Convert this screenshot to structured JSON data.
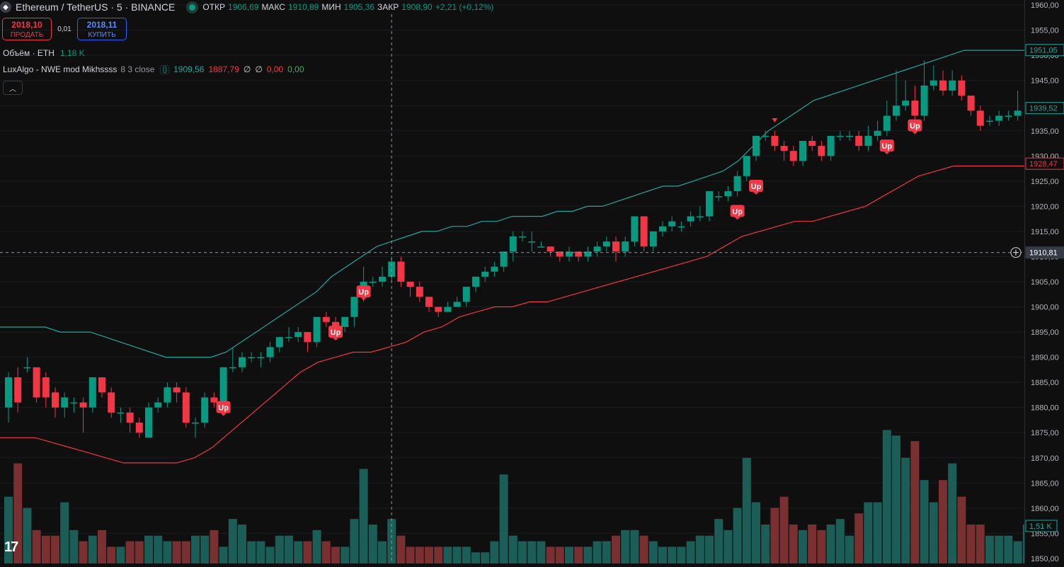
{
  "header": {
    "symbol": "Ethereum / TetherUS · 5 · BINANCE",
    "open_label": "ОТКР",
    "open_value": "1906,69",
    "high_label": "МАКС",
    "high_value": "1910,89",
    "low_label": "МИН",
    "low_value": "1905,36",
    "close_label": "ЗАКР",
    "close_value": "1908,90",
    "change": "+2,21 (+0,12%)"
  },
  "trade": {
    "sell_price": "2018,10",
    "sell_label": "ПРОДАТЬ",
    "spread": "0,01",
    "buy_price": "2018,11",
    "buy_label": "КУПИТЬ"
  },
  "volume_legend": {
    "label": "Объём · ETH",
    "value": "1,18 K"
  },
  "indicator_legend": {
    "name": "LuxAlgo - NWE mod Mikhssss",
    "params": "8 3 close",
    "upper": "1909,56",
    "lower": "1887,79",
    "v3": "∅",
    "v4": "∅",
    "v5": "0,00",
    "v6": "0,00"
  },
  "colors": {
    "up": "#089981",
    "down": "#f23645",
    "upper_band": "#26a69a",
    "lower_band": "#f23645"
  },
  "axis": {
    "ticks": [
      "1960,00",
      "1955,00",
      "1950,00",
      "1945,00",
      "1940,00",
      "1935,00",
      "1930,00",
      "1925,00",
      "1920,00",
      "1915,00",
      "1910,00",
      "1905,00",
      "1900,00",
      "1895,00",
      "1890,00",
      "1885,00",
      "1880,00",
      "1875,00",
      "1870,00",
      "1865,00",
      "1860,00",
      "1855,00",
      "1850,00"
    ],
    "upper_label": "1951,05",
    "close_label": "1939,52",
    "lower_label": "1928,47",
    "crosshair_label": "1910,81",
    "volume_label": "1,51 K"
  },
  "chart_data": {
    "type": "candlestick",
    "x_unit": "5-minute bars",
    "y_range": [
      1849,
      1961
    ],
    "crosshair_price": 1910.81,
    "candles": [
      [
        1880,
        1886,
        1877,
        1887
      ],
      [
        1886,
        1881,
        1879,
        1888
      ],
      [
        1888,
        1888,
        1887,
        1890
      ],
      [
        1888,
        1882,
        1881,
        1888
      ],
      [
        1886,
        1882,
        1880,
        1887
      ],
      [
        1883,
        1880,
        1878,
        1884
      ],
      [
        1880,
        1882,
        1878,
        1883
      ],
      [
        1881,
        1881,
        1879,
        1882
      ],
      [
        1881,
        1880,
        1875,
        1882
      ],
      [
        1880,
        1886,
        1879,
        1886
      ],
      [
        1886,
        1883,
        1882,
        1886
      ],
      [
        1883,
        1879,
        1878,
        1884
      ],
      [
        1879,
        1879,
        1877,
        1880
      ],
      [
        1879,
        1877,
        1875,
        1880
      ],
      [
        1877,
        1875,
        1874,
        1878
      ],
      [
        1874,
        1880,
        1874,
        1881
      ],
      [
        1880,
        1881,
        1879,
        1882
      ],
      [
        1881,
        1884,
        1880,
        1885
      ],
      [
        1884,
        1883,
        1881,
        1885
      ],
      [
        1883,
        1877,
        1876,
        1884
      ],
      [
        1877,
        1877,
        1874,
        1878
      ],
      [
        1877,
        1882,
        1876,
        1883
      ],
      [
        1882,
        1881,
        1880,
        1883
      ],
      [
        1881,
        1888,
        1880,
        1888
      ],
      [
        1888,
        1888,
        1887,
        1892
      ],
      [
        1888,
        1890,
        1887,
        1891
      ],
      [
        1890,
        1890,
        1889,
        1891
      ],
      [
        1890,
        1890,
        1888,
        1891
      ],
      [
        1890,
        1892,
        1889,
        1893
      ],
      [
        1892,
        1894,
        1891,
        1894
      ],
      [
        1894,
        1894,
        1893,
        1896
      ],
      [
        1894,
        1895,
        1893,
        1896
      ],
      [
        1895,
        1893,
        1891,
        1895
      ],
      [
        1893,
        1898,
        1892,
        1898
      ],
      [
        1898,
        1897,
        1896,
        1899
      ],
      [
        1897,
        1896,
        1895,
        1898
      ],
      [
        1896,
        1898,
        1895,
        1898
      ],
      [
        1898,
        1902,
        1896,
        1902
      ],
      [
        1902,
        1905,
        1901,
        1908
      ],
      [
        1905,
        1905,
        1904,
        1906
      ],
      [
        1905,
        1906,
        1904,
        1908
      ],
      [
        1906,
        1909,
        1905,
        1910
      ],
      [
        1909,
        1905,
        1904,
        1910
      ],
      [
        1905,
        1904,
        1902,
        1905
      ],
      [
        1904,
        1902,
        1901,
        1905
      ],
      [
        1902,
        1900,
        1899,
        1902
      ],
      [
        1900,
        1899,
        1898,
        1900
      ],
      [
        1899,
        1900,
        1899,
        1901
      ],
      [
        1900,
        1901,
        1900,
        1902
      ],
      [
        1901,
        1904,
        1900,
        1904
      ],
      [
        1904,
        1906,
        1903,
        1906
      ],
      [
        1906,
        1907,
        1905,
        1908
      ],
      [
        1907,
        1908,
        1906,
        1909
      ],
      [
        1908,
        1911,
        1907,
        1911
      ],
      [
        1911,
        1914,
        1909,
        1915
      ],
      [
        1914,
        1914,
        1913,
        1915
      ],
      [
        1913,
        1913,
        1911,
        1915
      ],
      [
        1912,
        1912,
        1912,
        1913
      ],
      [
        1912,
        1911,
        1910,
        1912
      ],
      [
        1911,
        1910,
        1909,
        1911
      ],
      [
        1910,
        1911,
        1909,
        1912
      ],
      [
        1911,
        1910,
        1909,
        1911
      ],
      [
        1910,
        1911,
        1909,
        1912
      ],
      [
        1911,
        1912,
        1910,
        1913
      ],
      [
        1912,
        1913,
        1911,
        1914
      ],
      [
        1913,
        1911,
        1909,
        1914
      ],
      [
        1911,
        1913,
        1910,
        1914
      ],
      [
        1913,
        1918,
        1912,
        1918
      ],
      [
        1918,
        1912,
        1911,
        1918
      ],
      [
        1912,
        1915,
        1911,
        1915
      ],
      [
        1915,
        1916,
        1914,
        1917
      ],
      [
        1916,
        1917,
        1915,
        1918
      ],
      [
        1916,
        1916,
        1915,
        1917
      ],
      [
        1917,
        1918,
        1916,
        1919
      ],
      [
        1918,
        1918,
        1917,
        1920
      ],
      [
        1918,
        1923,
        1917,
        1923
      ],
      [
        1922,
        1922,
        1921,
        1923
      ],
      [
        1922,
        1923,
        1921,
        1924
      ],
      [
        1923,
        1926,
        1922,
        1927
      ],
      [
        1926,
        1930,
        1925,
        1930
      ],
      [
        1930,
        1934,
        1929,
        1934
      ],
      [
        1934,
        1934,
        1933,
        1935
      ],
      [
        1934,
        1932,
        1931,
        1935
      ],
      [
        1932,
        1931,
        1929,
        1933
      ],
      [
        1931,
        1929,
        1928,
        1932
      ],
      [
        1929,
        1933,
        1928,
        1933
      ],
      [
        1933,
        1932,
        1931,
        1934
      ],
      [
        1932,
        1930,
        1929,
        1933
      ],
      [
        1930,
        1934,
        1929,
        1934
      ],
      [
        1934,
        1934,
        1933,
        1935
      ],
      [
        1934,
        1934,
        1933,
        1935
      ],
      [
        1934,
        1932,
        1931,
        1935
      ],
      [
        1932,
        1934,
        1931,
        1936
      ],
      [
        1934,
        1935,
        1933,
        1937
      ],
      [
        1935,
        1938,
        1934,
        1941
      ],
      [
        1938,
        1940,
        1937,
        1947
      ],
      [
        1940,
        1941,
        1939,
        1945
      ],
      [
        1941,
        1938,
        1937,
        1944
      ],
      [
        1938,
        1944,
        1937,
        1949
      ],
      [
        1944,
        1945,
        1943,
        1948
      ],
      [
        1945,
        1943,
        1942,
        1947
      ],
      [
        1943,
        1945,
        1942,
        1947
      ],
      [
        1945,
        1942,
        1941,
        1946
      ],
      [
        1942,
        1939,
        1938,
        1942
      ],
      [
        1939,
        1936,
        1935,
        1940
      ],
      [
        1937,
        1937,
        1936,
        1938
      ],
      [
        1937,
        1938,
        1936,
        1939
      ],
      [
        1938,
        1938,
        1937,
        1939
      ],
      [
        1938,
        1939,
        1937,
        1943
      ]
    ],
    "volumes": [
      1.2,
      1.8,
      1.0,
      0.6,
      0.5,
      0.5,
      1.1,
      0.6,
      0.4,
      0.5,
      0.6,
      0.3,
      0.3,
      0.4,
      0.4,
      0.5,
      0.5,
      0.4,
      0.4,
      0.4,
      0.5,
      0.5,
      0.6,
      0.3,
      0.8,
      0.7,
      0.4,
      0.4,
      0.3,
      0.5,
      0.5,
      0.4,
      0.4,
      0.6,
      0.4,
      0.3,
      0.3,
      0.8,
      1.7,
      0.7,
      0.4,
      0.8,
      0.5,
      0.3,
      0.3,
      0.3,
      0.3,
      0.3,
      0.3,
      0.3,
      0.2,
      0.2,
      0.4,
      1.6,
      0.5,
      0.4,
      0.4,
      0.4,
      0.3,
      0.3,
      0.3,
      0.3,
      0.3,
      0.4,
      0.4,
      0.5,
      0.6,
      0.6,
      0.5,
      0.4,
      0.3,
      0.3,
      0.3,
      0.4,
      0.5,
      0.5,
      0.8,
      0.6,
      1.0,
      1.9,
      1.1,
      0.7,
      1.0,
      1.2,
      0.7,
      0.6,
      0.7,
      0.6,
      0.7,
      0.8,
      0.5,
      0.9,
      1.1,
      1.1,
      2.4,
      2.3,
      1.9,
      2.2,
      1.5,
      1.1,
      1.5,
      1.8,
      1.2,
      0.7,
      0.7,
      0.5,
      0.5,
      0.5,
      0.4,
      0.7,
      0.7
    ],
    "upper_band": [
      1896,
      1896,
      1896,
      1896,
      1895,
      1895,
      1895,
      1894,
      1893,
      1892,
      1891,
      1890,
      1890,
      1890,
      1890,
      1891,
      1893,
      1895,
      1897,
      1899,
      1901,
      1903,
      1906,
      1908,
      1910,
      1912,
      1913,
      1914,
      1915,
      1915,
      1916,
      1916,
      1917,
      1917,
      1918,
      1918,
      1918,
      1919,
      1919,
      1920,
      1920,
      1921,
      1922,
      1923,
      1924,
      1924,
      1925,
      1926,
      1927,
      1929,
      1932,
      1935,
      1937,
      1939,
      1941,
      1942,
      1943,
      1944,
      1945,
      1946,
      1947,
      1948,
      1949,
      1950,
      1951,
      1951,
      1951,
      1951,
      1951
    ],
    "lower_band": [
      1874,
      1874,
      1874,
      1873,
      1872,
      1871,
      1870,
      1869,
      1869,
      1869,
      1869,
      1870,
      1872,
      1875,
      1878,
      1881,
      1884,
      1887,
      1889,
      1890,
      1891,
      1891,
      1892,
      1893,
      1895,
      1896,
      1898,
      1899,
      1900,
      1900,
      1901,
      1901,
      1902,
      1903,
      1904,
      1905,
      1906,
      1907,
      1908,
      1909,
      1910,
      1912,
      1914,
      1915,
      1916,
      1917,
      1917,
      1918,
      1919,
      1920,
      1922,
      1924,
      1926,
      1927,
      1928,
      1928,
      1928,
      1928,
      1928
    ],
    "signals": [
      {
        "index": 23,
        "label": "Up",
        "price": 1880
      },
      {
        "index": 35,
        "label": "Up",
        "price": 1895
      },
      {
        "index": 38,
        "label": "Up",
        "price": 1903
      },
      {
        "index": 78,
        "label": "Up",
        "price": 1919
      },
      {
        "index": 80,
        "label": "Up",
        "price": 1924
      },
      {
        "index": 94,
        "label": "Up",
        "price": 1932
      },
      {
        "index": 97,
        "label": "Up",
        "price": 1936
      }
    ]
  }
}
